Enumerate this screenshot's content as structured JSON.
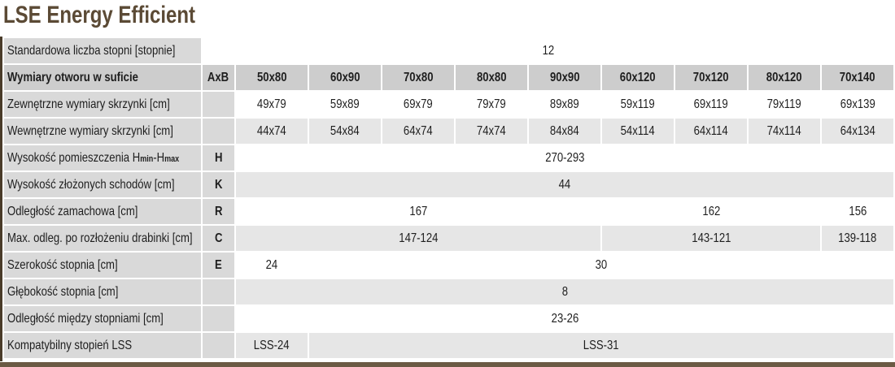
{
  "header": {
    "title": "LSE Energy Efficient"
  },
  "table": {
    "top_row": {
      "label": "Standardowa liczba stopni [stopnie]",
      "value": "12"
    },
    "head": {
      "label": "Wymiary otworu w suficie",
      "code": "AxB",
      "sizes": [
        "50x80",
        "60x90",
        "70x80",
        "80x80",
        "90x90",
        "60x120",
        "70x120",
        "80x120",
        "70x140"
      ]
    },
    "rows": [
      {
        "label": "Zewnętrzne wymiary skrzynki [cm]",
        "code": null,
        "cells": [
          "49x79",
          "59x89",
          "69x79",
          "79x79",
          "89x89",
          "59x119",
          "69x119",
          "79x119",
          "69x139"
        ]
      },
      {
        "label": "Wewnętrzne wymiary skrzynki [cm]",
        "code": null,
        "cells": [
          "44x74",
          "54x84",
          "64x74",
          "74x74",
          "84x84",
          "54x114",
          "64x114",
          "74x114",
          "64x134"
        ]
      },
      {
        "label": [
          "Wysokość pomieszczenia H",
          "min",
          "-H",
          "max"
        ],
        "code": "H",
        "cells": [
          "270-293",
          null,
          null,
          null,
          null,
          null,
          null,
          null,
          null
        ]
      },
      {
        "label": "Wysokość złożonych schodów [cm]",
        "code": "K",
        "cells": [
          "44",
          null,
          null,
          null,
          null,
          null,
          null,
          null,
          null
        ]
      },
      {
        "label": "Odległość zamachowa [cm]",
        "code": "R",
        "cells": [
          "167",
          null,
          null,
          null,
          null,
          "162",
          null,
          null,
          "156"
        ]
      },
      {
        "label": "Max. odleg. po rozłożeniu drabinki [cm]",
        "code": "C",
        "cells": [
          "147-124",
          null,
          null,
          null,
          null,
          "143-121",
          null,
          null,
          "139-118"
        ]
      },
      {
        "label": "Szerokość stopnia [cm]",
        "code": "E",
        "cells": [
          "24",
          "30",
          null,
          null,
          null,
          null,
          null,
          null,
          null
        ]
      },
      {
        "label": "Głębokość stopnia [cm]",
        "code": null,
        "cells": [
          "8",
          null,
          null,
          null,
          null,
          null,
          null,
          null,
          null
        ]
      },
      {
        "label": "Odległość między stopniami [cm]",
        "code": null,
        "cells": [
          "23-26",
          null,
          null,
          null,
          null,
          null,
          null,
          null,
          null
        ]
      },
      {
        "label": "Kompatybilny stopień LSS",
        "code": null,
        "cells": [
          "LSS-24",
          "LSS-31",
          null,
          null,
          null,
          null,
          null,
          null,
          null
        ]
      }
    ]
  }
}
